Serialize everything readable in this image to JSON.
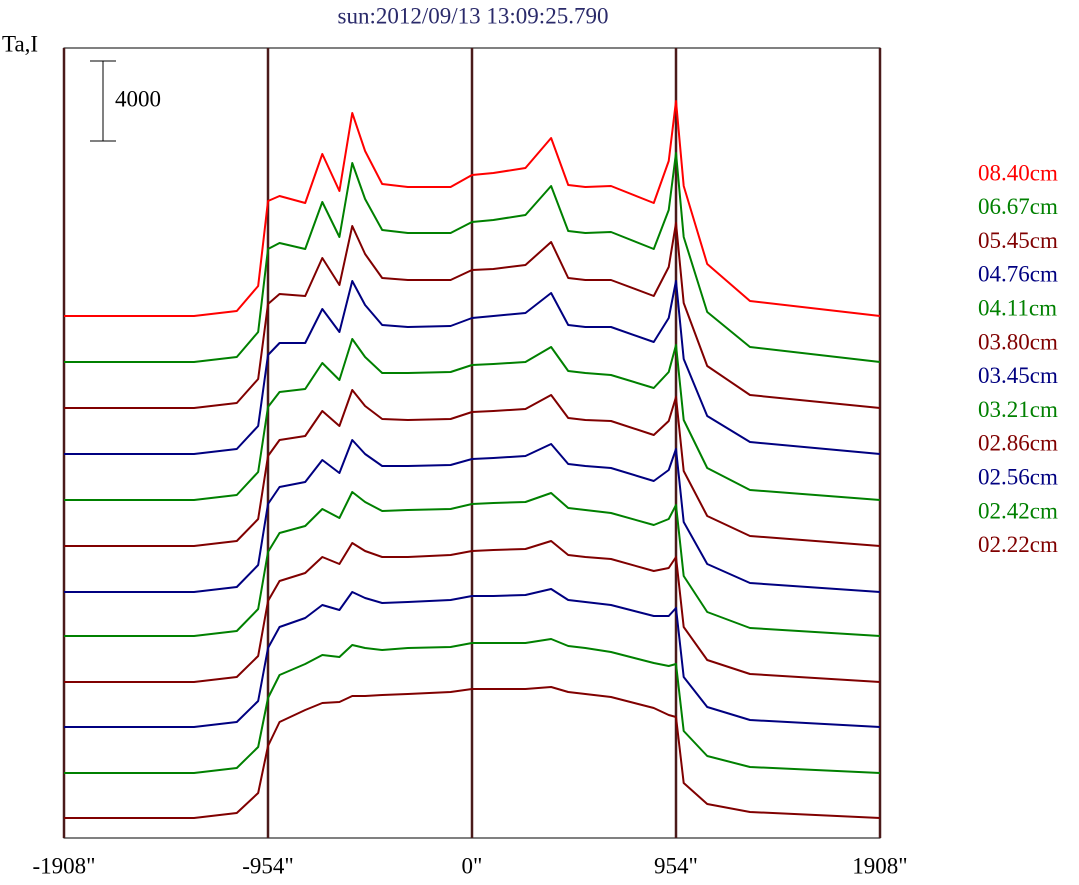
{
  "chart_data": {
    "type": "line",
    "title": "sun:2012/09/13 13:09:25.790",
    "y_label": "Ta,I",
    "scale_bar": 4000,
    "legend": "right",
    "grid_x": true,
    "grid_color": "#4a1a1a",
    "xlim": [
      -1908,
      1908
    ],
    "xticks": [
      {
        "value": -1908,
        "label": "-1908\""
      },
      {
        "value": -954,
        "label": "-954\""
      },
      {
        "value": 0,
        "label": "0\""
      },
      {
        "value": 954,
        "label": "954\""
      },
      {
        "value": 1908,
        "label": "1908\""
      }
    ],
    "ylim": [
      0,
      39500
    ],
    "x": [
      -1908,
      -1300,
      -1100,
      -1000,
      -954,
      -900,
      -780,
      -700,
      -620,
      -560,
      -500,
      -420,
      -300,
      -100,
      0,
      100,
      250,
      370,
      450,
      530,
      650,
      850,
      920,
      954,
      990,
      1100,
      1300,
      1908
    ],
    "series": [
      {
        "name": "08.40cm",
        "color": "#ff0000",
        "values": [
          26100,
          26100,
          26350,
          27600,
          31850,
          32100,
          31750,
          34200,
          32350,
          36250,
          34350,
          32700,
          32550,
          32550,
          33150,
          33250,
          33500,
          35000,
          32650,
          32550,
          32600,
          31750,
          33850,
          36850,
          32600,
          28700,
          26850,
          26100
        ]
      },
      {
        "name": "06.67cm",
        "color": "#008000",
        "values": [
          23800,
          23800,
          24050,
          25300,
          29450,
          29750,
          29450,
          31800,
          30050,
          33750,
          31950,
          30400,
          30250,
          30250,
          30800,
          30900,
          31150,
          32600,
          30350,
          30250,
          30300,
          29450,
          31400,
          34250,
          30050,
          26300,
          24550,
          23800
        ]
      },
      {
        "name": "05.45cm",
        "color": "#800000",
        "values": [
          21500,
          21500,
          21750,
          22950,
          26700,
          27200,
          27100,
          29000,
          27650,
          30600,
          29200,
          28000,
          27900,
          27900,
          28400,
          28450,
          28650,
          29800,
          28000,
          27900,
          27900,
          27100,
          28550,
          30750,
          26750,
          23600,
          22150,
          21500
        ]
      },
      {
        "name": "04.76cm",
        "color": "#000080",
        "values": [
          19200,
          19200,
          19450,
          20600,
          24150,
          24750,
          24750,
          26450,
          25300,
          27850,
          26650,
          25650,
          25550,
          25600,
          26000,
          26100,
          26250,
          27250,
          25650,
          25550,
          25550,
          24800,
          26000,
          27850,
          23950,
          21100,
          19800,
          19200
        ]
      },
      {
        "name": "04.11cm",
        "color": "#008000",
        "values": [
          16900,
          16900,
          17150,
          18300,
          21550,
          22300,
          22450,
          23750,
          22900,
          24950,
          24050,
          23250,
          23250,
          23300,
          23650,
          23700,
          23800,
          24550,
          23350,
          23250,
          23150,
          22500,
          23300,
          24650,
          20900,
          18500,
          17400,
          16900
        ]
      },
      {
        "name": "03.80cm",
        "color": "#800000",
        "values": [
          14600,
          14600,
          14850,
          15950,
          19100,
          19900,
          20100,
          21350,
          20600,
          22400,
          21600,
          20950,
          20900,
          20950,
          21300,
          21350,
          21450,
          22150,
          21000,
          20900,
          20850,
          20150,
          20850,
          22050,
          18350,
          16100,
          15100,
          14600
        ]
      },
      {
        "name": "03.45cm",
        "color": "#000080",
        "values": [
          12300,
          12300,
          12550,
          13650,
          16700,
          17550,
          17800,
          18900,
          18250,
          19900,
          19200,
          18600,
          18600,
          18650,
          18950,
          19000,
          19100,
          19700,
          18700,
          18600,
          18500,
          17850,
          18400,
          19450,
          15800,
          13700,
          12750,
          12300
        ]
      },
      {
        "name": "03.21cm",
        "color": "#008000",
        "values": [
          10100,
          10100,
          10350,
          11450,
          14300,
          15250,
          15600,
          16450,
          16000,
          17300,
          16800,
          16350,
          16400,
          16450,
          16700,
          16750,
          16800,
          17250,
          16500,
          16400,
          16250,
          15650,
          15950,
          16650,
          13100,
          11300,
          10500,
          10100
        ]
      },
      {
        "name": "02.86cm",
        "color": "#800000",
        "values": [
          7800,
          7800,
          8050,
          9100,
          11850,
          12850,
          13250,
          14050,
          13700,
          14750,
          14350,
          14050,
          14050,
          14150,
          14350,
          14400,
          14450,
          14850,
          14150,
          14050,
          13950,
          13350,
          13500,
          14050,
          10550,
          8900,
          8200,
          7800
        ]
      },
      {
        "name": "02.56cm",
        "color": "#000080",
        "values": [
          5550,
          5550,
          5800,
          6850,
          9500,
          10550,
          11000,
          11650,
          11400,
          12300,
          12000,
          11750,
          11800,
          11900,
          12100,
          12100,
          12150,
          12450,
          11900,
          11800,
          11650,
          11100,
          11100,
          11500,
          8050,
          6550,
          5900,
          5550
        ]
      },
      {
        "name": "02.42cm",
        "color": "#008000",
        "values": [
          3250,
          3250,
          3500,
          4550,
          7000,
          8150,
          8700,
          9150,
          9050,
          9650,
          9500,
          9400,
          9500,
          9550,
          9750,
          9750,
          9750,
          9950,
          9600,
          9500,
          9300,
          8750,
          8600,
          8700,
          5350,
          4100,
          3550,
          3250
        ]
      },
      {
        "name": "02.22cm",
        "color": "#800000",
        "values": [
          1000,
          1000,
          1250,
          2250,
          4600,
          5800,
          6400,
          6750,
          6800,
          7100,
          7100,
          7150,
          7200,
          7300,
          7450,
          7450,
          7450,
          7550,
          7300,
          7200,
          7050,
          6500,
          6150,
          6050,
          2750,
          1700,
          1300,
          1000
        ]
      }
    ]
  }
}
